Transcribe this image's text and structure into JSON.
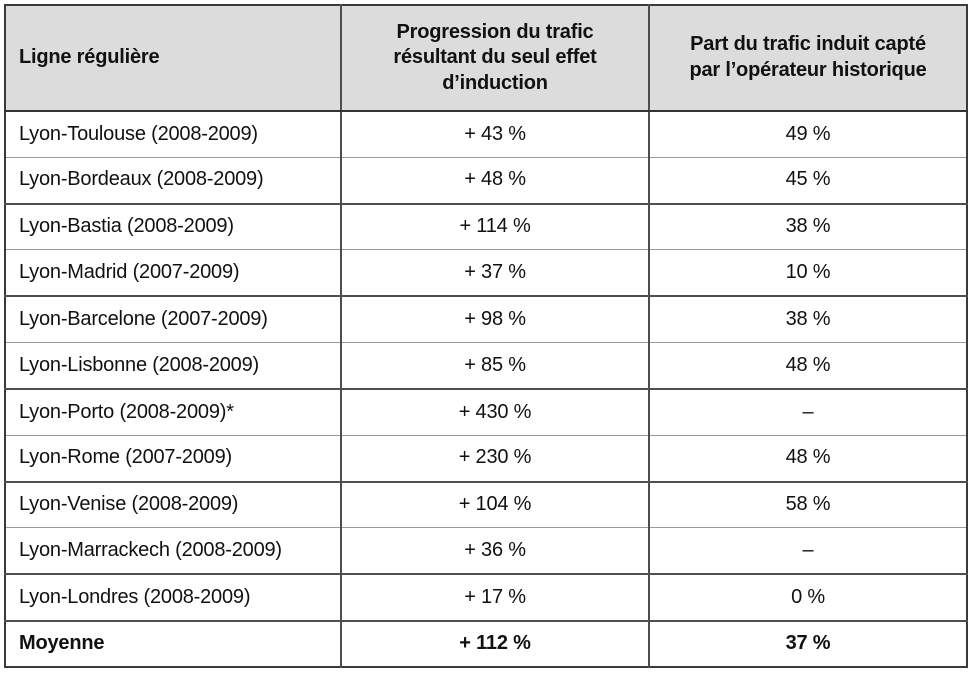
{
  "table": {
    "columns": [
      {
        "label": "Ligne régulière"
      },
      {
        "label": "Progression du trafic résultant du seul effet d’induction"
      },
      {
        "label": "Part du trafic induit capté par l’opérateur historique"
      }
    ],
    "rows": [
      {
        "line": "Lyon-Toulouse (2008-2009)",
        "progression": "+ 43 %",
        "part": "49 %"
      },
      {
        "line": "Lyon-Bordeaux (2008-2009)",
        "progression": "+ 48 %",
        "part": "45 %"
      },
      {
        "line": "Lyon-Bastia (2008-2009)",
        "progression": "+ 114 %",
        "part": "38 %"
      },
      {
        "line": "Lyon-Madrid (2007-2009)",
        "progression": "+ 37 %",
        "part": "10 %"
      },
      {
        "line": "Lyon-Barcelone (2007-2009)",
        "progression": "+ 98 %",
        "part": "38 %"
      },
      {
        "line": "Lyon-Lisbonne (2008-2009)",
        "progression": "+ 85 %",
        "part": "48 %"
      },
      {
        "line": "Lyon-Porto (2008-2009)*",
        "progression": "+ 430 %",
        "part": "–"
      },
      {
        "line": "Lyon-Rome (2007-2009)",
        "progression": "+ 230 %",
        "part": "48 %"
      },
      {
        "line": "Lyon-Venise (2008-2009)",
        "progression": "+ 104 %",
        "part": "58 %"
      },
      {
        "line": "Lyon-Marrackech (2008-2009)",
        "progression": "+ 36 %",
        "part": "–"
      },
      {
        "line": "Lyon-Londres (2008-2009)",
        "progression": "+ 17 %",
        "part": "0 %"
      }
    ],
    "summary_row": {
      "line": "Moyenne",
      "progression": "+ 112 %",
      "part": "37 %"
    },
    "colors": {
      "header_bg": "#dcdcdc",
      "border_dark": "#3a3a3a",
      "border_light": "#9a9a9a",
      "text": "#111111"
    }
  }
}
